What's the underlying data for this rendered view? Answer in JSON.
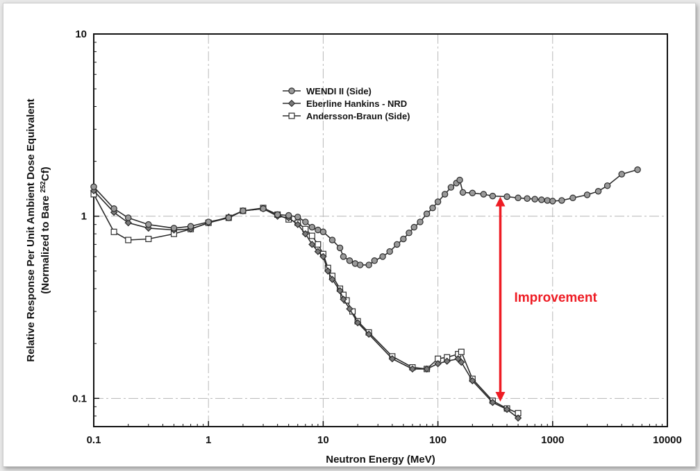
{
  "chart_data": {
    "type": "line",
    "xlabel": "Neutron Energy (MeV)",
    "ylabel_line1": "Relative Response Per Unit Ambient Dose Equivalent",
    "ylabel_line2_prefix": "(Normalized to Bare ",
    "ylabel_line2_sup": "252",
    "ylabel_line2_suffix": "Cf)",
    "x_scale": "log",
    "y_scale": "log",
    "xlim": [
      0.1,
      10000
    ],
    "ylim": [
      0.07,
      10
    ],
    "x_ticks": [
      {
        "value": 0.1,
        "label": "0.1"
      },
      {
        "value": 1,
        "label": "1"
      },
      {
        "value": 10,
        "label": "10"
      },
      {
        "value": 100,
        "label": "100"
      },
      {
        "value": 1000,
        "label": "1000"
      },
      {
        "value": 10000,
        "label": "10000"
      }
    ],
    "y_ticks": [
      {
        "value": 0.1,
        "label": "0.1"
      },
      {
        "value": 1,
        "label": "1"
      },
      {
        "value": 10,
        "label": "10"
      }
    ],
    "grid": true,
    "legend_position": "upper-center",
    "series": [
      {
        "name": "WENDI II (Side)",
        "marker": "circle",
        "color": "#2b2b2b",
        "fill": "#9a9a9a",
        "points": [
          [
            0.1,
            1.45
          ],
          [
            0.15,
            1.1
          ],
          [
            0.2,
            0.98
          ],
          [
            0.3,
            0.9
          ],
          [
            0.5,
            0.86
          ],
          [
            0.7,
            0.88
          ],
          [
            1.0,
            0.93
          ],
          [
            1.5,
            0.98
          ],
          [
            2.0,
            1.07
          ],
          [
            3.0,
            1.1
          ],
          [
            4.0,
            1.02
          ],
          [
            5.0,
            1.01
          ],
          [
            6.0,
            0.99
          ],
          [
            7.0,
            0.93
          ],
          [
            8.0,
            0.87
          ],
          [
            9.0,
            0.84
          ],
          [
            10.0,
            0.82
          ],
          [
            12.0,
            0.74
          ],
          [
            14.0,
            0.67
          ],
          [
            15.0,
            0.6
          ],
          [
            17.0,
            0.57
          ],
          [
            19.0,
            0.55
          ],
          [
            21.0,
            0.54
          ],
          [
            25.0,
            0.54
          ],
          [
            28.0,
            0.57
          ],
          [
            33.0,
            0.6
          ],
          [
            38.0,
            0.64
          ],
          [
            44.0,
            0.7
          ],
          [
            50.0,
            0.75
          ],
          [
            56.0,
            0.81
          ],
          [
            62.0,
            0.87
          ],
          [
            70.0,
            0.93
          ],
          [
            80.0,
            1.03
          ],
          [
            90.0,
            1.11
          ],
          [
            100.0,
            1.2
          ],
          [
            115.0,
            1.32
          ],
          [
            130.0,
            1.44
          ],
          [
            145.0,
            1.52
          ],
          [
            155.0,
            1.58
          ],
          [
            165.0,
            1.35
          ],
          [
            200.0,
            1.34
          ],
          [
            250.0,
            1.32
          ],
          [
            300.0,
            1.29
          ],
          [
            400.0,
            1.28
          ],
          [
            500.0,
            1.26
          ],
          [
            600.0,
            1.25
          ],
          [
            700.0,
            1.24
          ],
          [
            800.0,
            1.23
          ],
          [
            900.0,
            1.22
          ],
          [
            1000.0,
            1.21
          ],
          [
            1200.0,
            1.22
          ],
          [
            1500.0,
            1.26
          ],
          [
            2000.0,
            1.31
          ],
          [
            2500.0,
            1.37
          ],
          [
            3000.0,
            1.47
          ],
          [
            4000.0,
            1.7
          ],
          [
            5500.0,
            1.8
          ]
        ]
      },
      {
        "name": "Eberline Hankins - NRD",
        "marker": "diamond",
        "color": "#2b2b2b",
        "fill": "#7a7a7a",
        "points": [
          [
            0.1,
            1.38
          ],
          [
            0.15,
            1.05
          ],
          [
            0.2,
            0.92
          ],
          [
            0.3,
            0.86
          ],
          [
            0.5,
            0.84
          ],
          [
            0.7,
            0.85
          ],
          [
            1.0,
            0.92
          ],
          [
            1.5,
            0.99
          ],
          [
            2.0,
            1.07
          ],
          [
            3.0,
            1.1
          ],
          [
            4.0,
            1.0
          ],
          [
            5.0,
            0.98
          ],
          [
            6.0,
            0.9
          ],
          [
            7.0,
            0.8
          ],
          [
            8.0,
            0.7
          ],
          [
            9.0,
            0.64
          ],
          [
            10.0,
            0.6
          ],
          [
            11.0,
            0.5
          ],
          [
            12.0,
            0.45
          ],
          [
            14.0,
            0.39
          ],
          [
            15.0,
            0.35
          ],
          [
            17.0,
            0.31
          ],
          [
            20.0,
            0.26
          ],
          [
            25.0,
            0.225
          ],
          [
            40.0,
            0.165
          ],
          [
            60.0,
            0.145
          ],
          [
            80.0,
            0.145
          ],
          [
            100.0,
            0.155
          ],
          [
            120.0,
            0.16
          ],
          [
            150.0,
            0.165
          ],
          [
            160.0,
            0.158
          ],
          [
            200.0,
            0.125
          ],
          [
            300.0,
            0.095
          ],
          [
            400.0,
            0.087
          ],
          [
            500.0,
            0.078
          ]
        ]
      },
      {
        "name": "Andersson-Braun (Side)",
        "marker": "square",
        "color": "#2b2b2b",
        "fill": "#ffffff",
        "points": [
          [
            0.1,
            1.32
          ],
          [
            0.15,
            0.82
          ],
          [
            0.2,
            0.74
          ],
          [
            0.3,
            0.75
          ],
          [
            0.5,
            0.8
          ],
          [
            0.7,
            0.85
          ],
          [
            1.0,
            0.92
          ],
          [
            1.5,
            0.98
          ],
          [
            2.0,
            1.07
          ],
          [
            3.0,
            1.11
          ],
          [
            4.0,
            1.02
          ],
          [
            5.0,
            0.96
          ],
          [
            6.0,
            0.92
          ],
          [
            7.0,
            0.85
          ],
          [
            8.0,
            0.78
          ],
          [
            9.0,
            0.7
          ],
          [
            10.0,
            0.62
          ],
          [
            11.0,
            0.52
          ],
          [
            12.0,
            0.47
          ],
          [
            14.0,
            0.4
          ],
          [
            15.0,
            0.37
          ],
          [
            16.0,
            0.345
          ],
          [
            18.0,
            0.3
          ],
          [
            20.0,
            0.265
          ],
          [
            25.0,
            0.23
          ],
          [
            40.0,
            0.17
          ],
          [
            60.0,
            0.148
          ],
          [
            80.0,
            0.145
          ],
          [
            100.0,
            0.165
          ],
          [
            120.0,
            0.168
          ],
          [
            150.0,
            0.175
          ],
          [
            160.0,
            0.18
          ],
          [
            200.0,
            0.128
          ],
          [
            300.0,
            0.097
          ],
          [
            400.0,
            0.088
          ],
          [
            500.0,
            0.083
          ]
        ]
      }
    ],
    "annotation": {
      "text": "Improvement",
      "color": "#ee1c24",
      "arrow_x": 350,
      "arrow_y_top": 1.28,
      "arrow_y_bottom": 0.096
    }
  }
}
